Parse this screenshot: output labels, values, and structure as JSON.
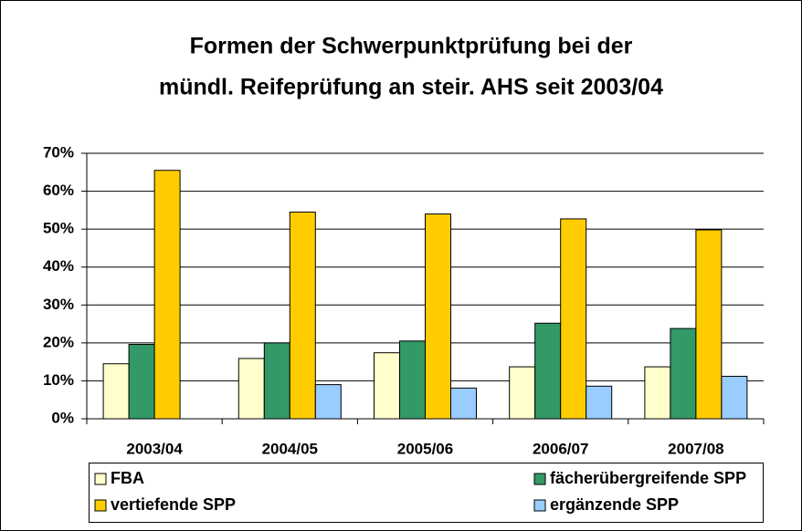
{
  "chart_data": {
    "type": "bar",
    "title": [
      "Formen der Schwerpunktprüfung bei der",
      "mündl. Reifeprüfung an steir. AHS seit 2003/04"
    ],
    "categories": [
      "2003/04",
      "2004/05",
      "2005/06",
      "2006/07",
      "2007/08"
    ],
    "series": [
      {
        "name": "FBA",
        "color": "#ffffcc",
        "values": [
          14.5,
          15.9,
          17.4,
          13.7,
          13.7
        ]
      },
      {
        "name": "fächerübergreifende SPP",
        "color": "#339966",
        "values": [
          19.6,
          20,
          20.5,
          25.2,
          23.8
        ]
      },
      {
        "name": "vertiefende SPP",
        "color": "#ffcc00",
        "values": [
          65.5,
          54.5,
          54,
          52.7,
          49.8
        ]
      },
      {
        "name": "ergänzende SPP",
        "color": "#99ccff",
        "values": [
          null,
          9,
          8.1,
          8.6,
          11.2
        ]
      }
    ],
    "ylim": [
      0,
      70
    ],
    "yticks": [
      {
        "value": 0,
        "label": "0%"
      },
      {
        "value": 10,
        "label": "10%"
      },
      {
        "value": 20,
        "label": "20%"
      },
      {
        "value": 30,
        "label": "30%"
      },
      {
        "value": 40,
        "label": "40%"
      },
      {
        "value": 50,
        "label": "50%"
      },
      {
        "value": 60,
        "label": "60%"
      },
      {
        "value": 70,
        "label": "70%"
      }
    ],
    "grid": true
  }
}
